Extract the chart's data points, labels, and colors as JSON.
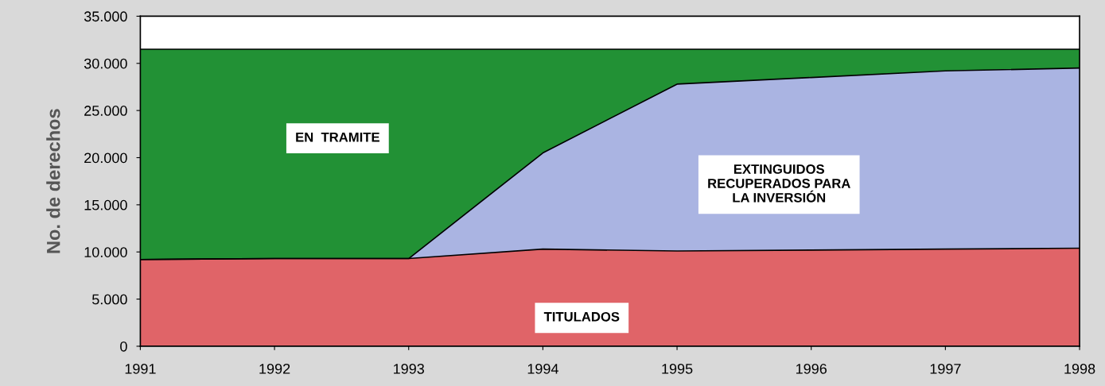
{
  "chart_data": {
    "type": "area",
    "stacked": true,
    "ylabel": "No. de derechos",
    "x": [
      1991,
      1992,
      1993,
      1994,
      1995,
      1996,
      1997,
      1998
    ],
    "series": [
      {
        "color": "#e06468",
        "values": [
          9200,
          9300,
          9300,
          10300,
          10100,
          10200,
          10300,
          10400
        ]
      },
      {
        "color": "#aab4e2",
        "values": [
          0,
          0,
          0,
          10200,
          17700,
          18300,
          18900,
          19100
        ]
      },
      {
        "color": "#229135",
        "values": [
          22300,
          22200,
          22200,
          11000,
          3700,
          3000,
          2300,
          2000
        ]
      }
    ],
    "xlim": [
      1991,
      1998
    ],
    "xticks": [
      1991,
      1992,
      1993,
      1994,
      1995,
      1996,
      1997,
      1998
    ],
    "ylim": [
      0,
      35000
    ],
    "yticks": [
      {
        "value": 0,
        "label": "0"
      },
      {
        "value": 5000,
        "label": "5.000"
      },
      {
        "value": 10000,
        "label": "10.000"
      },
      {
        "value": 15000,
        "label": "15.000"
      },
      {
        "value": 20000,
        "label": "20.000"
      },
      {
        "value": 25000,
        "label": "25.000"
      },
      {
        "value": 30000,
        "label": "30.000"
      },
      {
        "value": 35000,
        "label": "35.000"
      }
    ],
    "grid": false,
    "legend": false,
    "annotations": [
      "EN  TRAMITE",
      "EXTINGUIDOS\nRECUPERADOS PARA\nLA INVERSIÓN",
      "TITULADOS"
    ]
  }
}
